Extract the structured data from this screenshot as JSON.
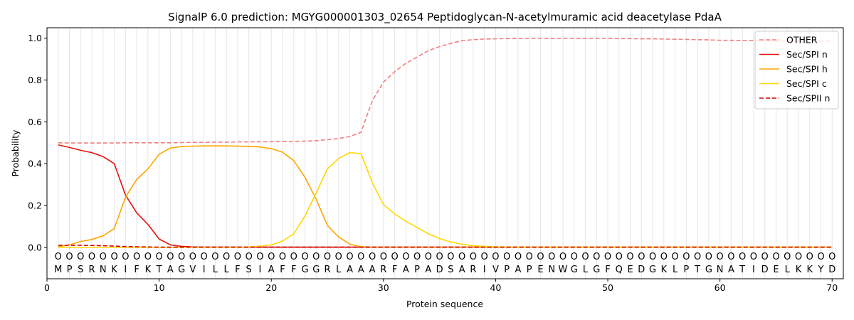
{
  "chart_data": {
    "type": "line",
    "title": "SignalP 6.0 prediction: MGYG000001303_02654 Peptidoglycan-N-acetylmuramic acid deacetylase PdaA",
    "xlabel": "Protein sequence",
    "ylabel": "Probability",
    "xlim": [
      0,
      71
    ],
    "ylim": [
      -0.15,
      1.05
    ],
    "x_ticks": [
      0,
      10,
      20,
      30,
      40,
      50,
      60,
      70
    ],
    "y_ticks": [
      0.0,
      0.2,
      0.4,
      0.6,
      0.8,
      1.0
    ],
    "x_tick_labels": [
      "0",
      "10",
      "20",
      "30",
      "40",
      "50",
      "60",
      "70"
    ],
    "y_tick_labels": [
      "0.0",
      "0.2",
      "0.4",
      "0.6",
      "0.8",
      "1.0"
    ],
    "grid": "vertical lines at each residue",
    "legend_position": "top-right",
    "sequence": [
      "M",
      "P",
      "S",
      "R",
      "N",
      "K",
      "I",
      "F",
      "K",
      "T",
      "A",
      "G",
      "V",
      "I",
      "L",
      "L",
      "F",
      "S",
      "I",
      "A",
      "F",
      "F",
      "G",
      "G",
      "R",
      "L",
      "A",
      "A",
      "A",
      "R",
      "F",
      "A",
      "P",
      "A",
      "D",
      "S",
      "A",
      "R",
      "I",
      "V",
      "P",
      "A",
      "P",
      "E",
      "N",
      "W",
      "G",
      "L",
      "G",
      "F",
      "Q",
      "E",
      "D",
      "G",
      "K",
      "L",
      "P",
      "T",
      "G",
      "N",
      "A",
      "T",
      "I",
      "D",
      "E",
      "L",
      "K",
      "K",
      "Y",
      "D"
    ],
    "region_markers": "O",
    "region_marker_y": -0.045,
    "series": [
      {
        "name": "OTHER",
        "color": "#f08080",
        "dash": "dashed",
        "values": [
          0.5,
          0.499,
          0.499,
          0.499,
          0.499,
          0.499,
          0.5,
          0.5,
          0.5,
          0.5,
          0.5,
          0.501,
          0.502,
          0.502,
          0.503,
          0.503,
          0.504,
          0.504,
          0.505,
          0.505,
          0.506,
          0.507,
          0.508,
          0.51,
          0.515,
          0.52,
          0.53,
          0.55,
          0.7,
          0.79,
          0.84,
          0.88,
          0.91,
          0.94,
          0.96,
          0.975,
          0.988,
          0.993,
          0.996,
          0.997,
          0.998,
          0.999,
          0.999,
          0.999,
          0.999,
          0.999,
          0.999,
          0.999,
          0.999,
          0.999,
          0.998,
          0.998,
          0.997,
          0.997,
          0.996,
          0.995,
          0.994,
          0.993,
          0.992,
          0.99,
          0.99,
          0.989,
          0.988,
          0.987,
          0.987,
          0.986,
          0.986,
          0.986,
          0.986,
          0.986
        ]
      },
      {
        "name": "Sec/SPI n",
        "color": "#e8120c",
        "dash": "solid",
        "values": [
          0.49,
          0.478,
          0.464,
          0.453,
          0.434,
          0.4,
          0.25,
          0.165,
          0.11,
          0.04,
          0.012,
          0.005,
          0.002,
          0.001,
          0.001,
          0.001,
          0.001,
          0.001,
          0.001,
          0.001,
          0.001,
          0.001,
          0.001,
          0.001,
          0.001,
          0.001,
          0.001,
          0.001,
          0.001,
          0.001,
          0.001,
          0.001,
          0.001,
          0.001,
          0.001,
          0.001,
          0.001,
          0.001,
          0.001,
          0.001,
          0.001,
          0.001,
          0.001,
          0.001,
          0.001,
          0.001,
          0.001,
          0.001,
          0.001,
          0.001,
          0.001,
          0.001,
          0.001,
          0.001,
          0.001,
          0.001,
          0.001,
          0.001,
          0.001,
          0.001,
          0.001,
          0.001,
          0.001,
          0.001,
          0.001,
          0.001,
          0.001,
          0.001,
          0.001,
          0.001
        ]
      },
      {
        "name": "Sec/SPI h",
        "color": "#ffa500",
        "dash": "solid",
        "values": [
          0.003,
          0.012,
          0.028,
          0.038,
          0.055,
          0.09,
          0.24,
          0.325,
          0.375,
          0.445,
          0.475,
          0.482,
          0.484,
          0.485,
          0.485,
          0.485,
          0.484,
          0.483,
          0.48,
          0.472,
          0.455,
          0.415,
          0.335,
          0.23,
          0.105,
          0.05,
          0.015,
          0.003,
          0.002,
          0.001,
          0.001,
          0.001,
          0.001,
          0.001,
          0.001,
          0.001,
          0.001,
          0.001,
          0.001,
          0.001,
          0.001,
          0.001,
          0.001,
          0.001,
          0.001,
          0.001,
          0.001,
          0.001,
          0.001,
          0.001,
          0.001,
          0.001,
          0.001,
          0.001,
          0.001,
          0.001,
          0.001,
          0.001,
          0.001,
          0.001,
          0.001,
          0.001,
          0.001,
          0.001,
          0.001,
          0.001,
          0.001,
          0.001,
          0.001,
          0.001
        ]
      },
      {
        "name": "Sec/SPI c",
        "color": "#ffd700",
        "dash": "solid",
        "values": [
          0.0,
          0.0,
          0.0,
          0.0,
          0.0,
          0.0,
          0.0,
          0.0,
          0.0,
          0.0,
          0.0,
          0.0,
          0.0,
          0.0,
          0.0,
          0.0,
          0.0,
          0.002,
          0.006,
          0.012,
          0.03,
          0.065,
          0.15,
          0.26,
          0.375,
          0.425,
          0.453,
          0.448,
          0.31,
          0.205,
          0.16,
          0.125,
          0.095,
          0.065,
          0.042,
          0.026,
          0.015,
          0.008,
          0.005,
          0.003,
          0.002,
          0.001,
          0.001,
          0.001,
          0.001,
          0.001,
          0.001,
          0.001,
          0.001,
          0.001,
          0.001,
          0.001,
          0.001,
          0.001,
          0.001,
          0.001,
          0.001,
          0.001,
          0.001,
          0.001,
          0.001,
          0.001,
          0.001,
          0.001,
          0.001,
          0.001,
          0.001,
          0.001,
          0.001,
          0.001
        ]
      },
      {
        "name": "Sec/SPII n",
        "color": "#cc0000",
        "dash": "dashed",
        "values": [
          0.01,
          0.01,
          0.01,
          0.009,
          0.008,
          0.006,
          0.004,
          0.003,
          0.002,
          0.001,
          0.001,
          0.001,
          0.001,
          0.001,
          0.001,
          0.001,
          0.001,
          0.001,
          0.001,
          0.001,
          0.001,
          0.001,
          0.001,
          0.001,
          0.001,
          0.001,
          0.001,
          0.001,
          0.001,
          0.001,
          0.001,
          0.001,
          0.001,
          0.001,
          0.001,
          0.001,
          0.001,
          0.001,
          0.001,
          0.001,
          0.001,
          0.001,
          0.001,
          0.001,
          0.001,
          0.001,
          0.001,
          0.001,
          0.001,
          0.001,
          0.001,
          0.001,
          0.001,
          0.001,
          0.001,
          0.001,
          0.001,
          0.001,
          0.001,
          0.001,
          0.001,
          0.001,
          0.001,
          0.001,
          0.001,
          0.001,
          0.001,
          0.001,
          0.001,
          0.001
        ]
      }
    ]
  }
}
